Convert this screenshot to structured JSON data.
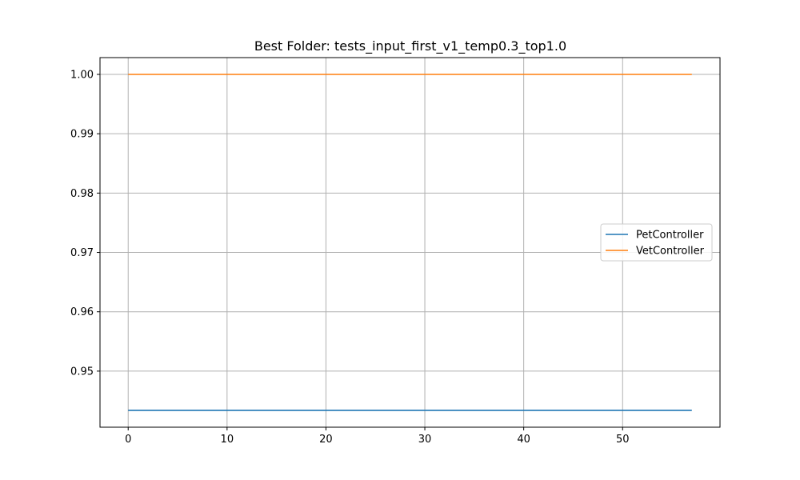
{
  "chart_data": {
    "type": "line",
    "title": "Best Folder: tests_input_first_v1_temp0.3_top1.0",
    "xlabel": "",
    "ylabel": "",
    "xlim": [
      -2.85,
      59.85
    ],
    "ylim": [
      0.94055,
      1.00283
    ],
    "xticks": [
      0,
      10,
      20,
      30,
      40,
      50
    ],
    "xtick_labels": [
      "0",
      "10",
      "20",
      "30",
      "40",
      "50"
    ],
    "yticks": [
      0.95,
      0.96,
      0.97,
      0.98,
      0.99,
      1.0
    ],
    "ytick_labels": [
      "0.95",
      "0.96",
      "0.97",
      "0.98",
      "0.99",
      "1.00"
    ],
    "grid": true,
    "legend_position": "center-right",
    "series": [
      {
        "name": "PetController",
        "color": "#1f77b4",
        "x": [
          0,
          57
        ],
        "y": [
          0.9434,
          0.9434
        ]
      },
      {
        "name": "VetController",
        "color": "#ff7f0e",
        "x": [
          0,
          57
        ],
        "y": [
          1.0,
          1.0
        ]
      }
    ]
  }
}
